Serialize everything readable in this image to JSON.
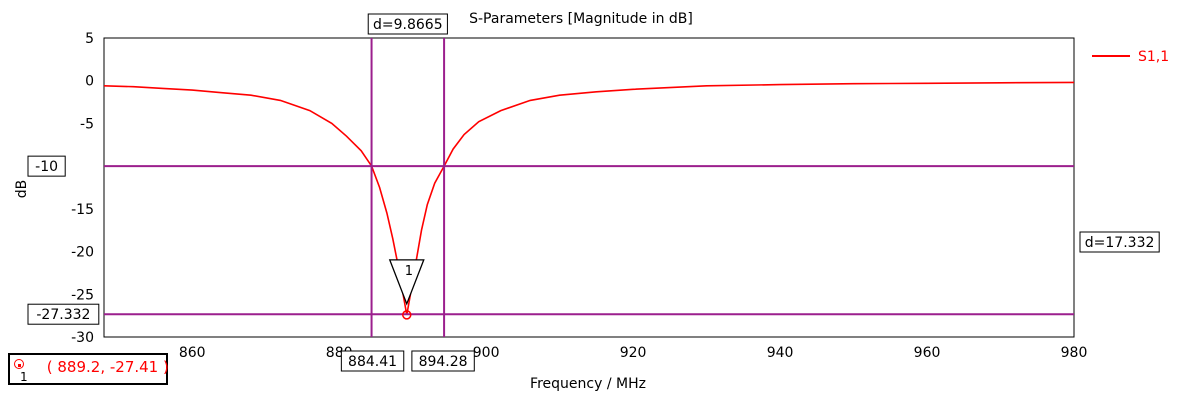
{
  "chart_data": {
    "type": "line",
    "title": "S-Parameters [Magnitude in dB]",
    "xlabel": "Frequency / MHz",
    "ylabel": "dB",
    "xlim": [
      848,
      980
    ],
    "ylim": [
      -30,
      5
    ],
    "x_ticks": [
      "860",
      "880",
      "900",
      "920",
      "940",
      "960",
      "980"
    ],
    "y_ticks": [
      "5",
      "0",
      "-5",
      "-10",
      "-15",
      "-20",
      "-25",
      "-30"
    ],
    "grid": true,
    "legend_position": "top-right",
    "colors": {
      "series": "#ff0000",
      "markers": "#9b1f8d",
      "grid": "#000000"
    },
    "series": [
      {
        "name": "S1,1",
        "x": [
          848,
          852,
          856,
          860,
          864,
          868,
          872,
          876,
          879,
          881,
          883,
          884.41,
          885.5,
          886.5,
          887.3,
          888,
          888.6,
          889.2,
          889.8,
          890.5,
          891.2,
          892,
          893,
          894.28,
          895.5,
          897,
          899,
          902,
          906,
          910,
          915,
          920,
          930,
          940,
          950,
          960,
          970,
          980
        ],
        "y": [
          -0.6,
          -0.7,
          -0.9,
          -1.1,
          -1.4,
          -1.7,
          -2.3,
          -3.5,
          -5.0,
          -6.5,
          -8.2,
          -10.0,
          -12.5,
          -15.5,
          -18.5,
          -21.5,
          -24.5,
          -27.41,
          -24.5,
          -21.0,
          -17.5,
          -14.5,
          -12.0,
          -10.0,
          -8.0,
          -6.3,
          -4.8,
          -3.5,
          -2.3,
          -1.7,
          -1.3,
          -1.0,
          -0.6,
          -0.45,
          -0.35,
          -0.3,
          -0.25,
          -0.2
        ]
      }
    ],
    "markers": {
      "vertical": [
        884.41,
        894.28
      ],
      "horizontal": [
        -10,
        -27.332
      ],
      "vertical_labels": [
        "884.41",
        "894.28"
      ],
      "horizontal_labels": [
        "-10",
        "-27.332"
      ],
      "delta_x_label": "d=9.8665",
      "delta_y_label": "d=17.332"
    },
    "point_marker": {
      "label": "1",
      "x": 889.2,
      "y": -27.41
    }
  },
  "readout": {
    "index": "1",
    "text": " ( 889.2, -27.41 )"
  }
}
